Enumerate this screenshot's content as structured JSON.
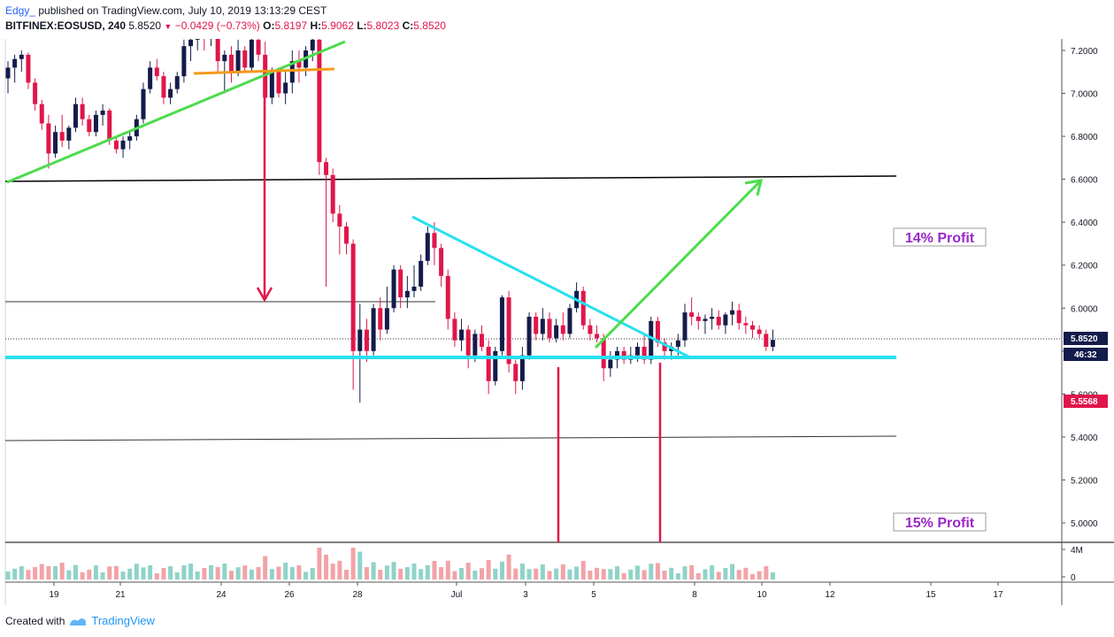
{
  "header": {
    "author": "Edgy_",
    "published": "published on TradingView.com, July 10, 2019 13:13:29 CEST",
    "symbol": "BITFINEX:EOSUSD, 240",
    "last": "5.8520",
    "change": "−0.0429 (−0.73%)",
    "o_label": "O:",
    "o": "5.8197",
    "h_label": "H:",
    "h": "5.9062",
    "l_label": "L:",
    "l": "5.8023",
    "c_label": "C:",
    "c": "5.8520"
  },
  "footer": {
    "created_with": "Created with",
    "brand": "TradingView"
  },
  "colors": {
    "up": "#131c4a",
    "down": "#e0164a",
    "trend_green": "#4cdc4c",
    "cyan": "#28e0f0",
    "orange": "#f59a1a",
    "profit_purple": "#9b27c8",
    "volume_up": "#8fd3c9",
    "volume_down": "#f2a3a7"
  },
  "chart_data": {
    "type": "candlestick",
    "symbol": "BITFINEX:EOSUSD",
    "timeframe": "240",
    "y_ticks": [
      "7.2000",
      "7.0000",
      "6.8000",
      "6.6000",
      "6.4000",
      "6.2000",
      "6.0000",
      "5.8000",
      "5.6000",
      "5.4000",
      "5.2000",
      "5.0000"
    ],
    "x_ticks": [
      "19",
      "21",
      "24",
      "26",
      "28",
      "Jul",
      "3",
      "5",
      "8",
      "10",
      "12",
      "15",
      "17"
    ],
    "ylim": [
      4.9,
      7.25
    ],
    "price_label": "5.8520",
    "countdown_label": "46:32",
    "low_label": "5.5568",
    "volume_axis": [
      "4M",
      "0"
    ],
    "annotations": {
      "profit_top": "14% Profit",
      "profit_bottom": "15% Profit"
    },
    "levels": [
      {
        "name": "resistance",
        "price": 6.6
      },
      {
        "name": "mid",
        "price": 6.02
      },
      {
        "name": "support",
        "price": 5.76
      },
      {
        "name": "lower",
        "price": 5.4
      }
    ],
    "candles": [
      {
        "o": 7.07,
        "h": 7.15,
        "l": 7.0,
        "c": 7.12
      },
      {
        "o": 7.12,
        "h": 7.18,
        "l": 7.05,
        "c": 7.16
      },
      {
        "o": 7.16,
        "h": 7.2,
        "l": 7.1,
        "c": 7.18
      },
      {
        "o": 7.18,
        "h": 7.19,
        "l": 7.02,
        "c": 7.05
      },
      {
        "o": 7.05,
        "h": 7.07,
        "l": 6.92,
        "c": 6.95
      },
      {
        "o": 6.95,
        "h": 6.97,
        "l": 6.83,
        "c": 6.86
      },
      {
        "o": 6.86,
        "h": 6.9,
        "l": 6.65,
        "c": 6.72
      },
      {
        "o": 6.72,
        "h": 6.85,
        "l": 6.7,
        "c": 6.82
      },
      {
        "o": 6.82,
        "h": 6.9,
        "l": 6.75,
        "c": 6.78
      },
      {
        "o": 6.78,
        "h": 6.85,
        "l": 6.74,
        "c": 6.84
      },
      {
        "o": 6.84,
        "h": 6.98,
        "l": 6.82,
        "c": 6.95
      },
      {
        "o": 6.95,
        "h": 6.98,
        "l": 6.85,
        "c": 6.88
      },
      {
        "o": 6.88,
        "h": 6.9,
        "l": 6.8,
        "c": 6.82
      },
      {
        "o": 6.82,
        "h": 6.92,
        "l": 6.8,
        "c": 6.9
      },
      {
        "o": 6.9,
        "h": 6.95,
        "l": 6.85,
        "c": 6.92
      },
      {
        "o": 6.92,
        "h": 6.93,
        "l": 6.76,
        "c": 6.78
      },
      {
        "o": 6.78,
        "h": 6.8,
        "l": 6.72,
        "c": 6.74
      },
      {
        "o": 6.74,
        "h": 6.8,
        "l": 6.7,
        "c": 6.78
      },
      {
        "o": 6.78,
        "h": 6.82,
        "l": 6.74,
        "c": 6.8
      },
      {
        "o": 6.8,
        "h": 6.9,
        "l": 6.78,
        "c": 6.88
      },
      {
        "o": 6.88,
        "h": 7.05,
        "l": 6.86,
        "c": 7.02
      },
      {
        "o": 7.02,
        "h": 7.15,
        "l": 7.0,
        "c": 7.12
      },
      {
        "o": 7.12,
        "h": 7.16,
        "l": 7.06,
        "c": 7.08
      },
      {
        "o": 7.08,
        "h": 7.1,
        "l": 6.95,
        "c": 6.98
      },
      {
        "o": 6.98,
        "h": 7.05,
        "l": 6.95,
        "c": 7.02
      },
      {
        "o": 7.02,
        "h": 7.1,
        "l": 7.0,
        "c": 7.08
      },
      {
        "o": 7.08,
        "h": 7.25,
        "l": 7.05,
        "c": 7.22
      },
      {
        "o": 7.22,
        "h": 7.3,
        "l": 7.15,
        "c": 7.25
      },
      {
        "o": 7.25,
        "h": 7.3,
        "l": 7.2,
        "c": 7.28
      },
      {
        "o": 7.28,
        "h": 7.3,
        "l": 7.2,
        "c": 7.26
      },
      {
        "o": 7.26,
        "h": 7.3,
        "l": 7.22,
        "c": 7.29
      },
      {
        "o": 7.29,
        "h": 7.3,
        "l": 7.1,
        "c": 7.15
      },
      {
        "o": 7.15,
        "h": 7.2,
        "l": 7.0,
        "c": 7.18
      },
      {
        "o": 7.18,
        "h": 7.22,
        "l": 7.05,
        "c": 7.1
      },
      {
        "o": 7.1,
        "h": 7.25,
        "l": 7.08,
        "c": 7.2
      },
      {
        "o": 7.2,
        "h": 7.22,
        "l": 7.1,
        "c": 7.12
      },
      {
        "o": 7.12,
        "h": 7.28,
        "l": 7.1,
        "c": 7.25
      },
      {
        "o": 7.25,
        "h": 7.3,
        "l": 7.15,
        "c": 7.18
      },
      {
        "o": 7.18,
        "h": 7.24,
        "l": 6.88,
        "c": 6.98
      },
      {
        "o": 6.98,
        "h": 7.12,
        "l": 6.95,
        "c": 7.1
      },
      {
        "o": 7.1,
        "h": 7.12,
        "l": 6.98,
        "c": 7.0
      },
      {
        "o": 7.0,
        "h": 7.1,
        "l": 6.95,
        "c": 7.05
      },
      {
        "o": 7.05,
        "h": 7.2,
        "l": 7.0,
        "c": 7.15
      },
      {
        "o": 7.15,
        "h": 7.2,
        "l": 7.05,
        "c": 7.12
      },
      {
        "o": 7.12,
        "h": 7.22,
        "l": 7.08,
        "c": 7.2
      },
      {
        "o": 7.2,
        "h": 7.3,
        "l": 7.15,
        "c": 7.25
      },
      {
        "o": 7.25,
        "h": 7.3,
        "l": 6.62,
        "c": 6.68
      },
      {
        "o": 6.68,
        "h": 6.7,
        "l": 6.1,
        "c": 6.62
      },
      {
        "o": 6.62,
        "h": 6.65,
        "l": 6.4,
        "c": 6.44
      },
      {
        "o": 6.44,
        "h": 6.48,
        "l": 6.25,
        "c": 6.38
      },
      {
        "o": 6.38,
        "h": 6.4,
        "l": 6.25,
        "c": 6.3
      },
      {
        "o": 6.3,
        "h": 6.32,
        "l": 5.62,
        "c": 5.8
      },
      {
        "o": 5.8,
        "h": 6.02,
        "l": 5.56,
        "c": 5.9
      },
      {
        "o": 5.9,
        "h": 5.95,
        "l": 5.75,
        "c": 5.8
      },
      {
        "o": 5.8,
        "h": 6.02,
        "l": 5.78,
        "c": 6.0
      },
      {
        "o": 6.0,
        "h": 6.05,
        "l": 5.85,
        "c": 5.9
      },
      {
        "o": 5.9,
        "h": 6.1,
        "l": 5.88,
        "c": 6.0
      },
      {
        "o": 6.0,
        "h": 6.2,
        "l": 5.98,
        "c": 6.18
      },
      {
        "o": 6.18,
        "h": 6.2,
        "l": 6.0,
        "c": 6.05
      },
      {
        "o": 6.05,
        "h": 6.15,
        "l": 6.0,
        "c": 6.08
      },
      {
        "o": 6.08,
        "h": 6.2,
        "l": 6.05,
        "c": 6.1
      },
      {
        "o": 6.1,
        "h": 6.25,
        "l": 6.08,
        "c": 6.22
      },
      {
        "o": 6.22,
        "h": 6.38,
        "l": 6.2,
        "c": 6.35
      },
      {
        "o": 6.35,
        "h": 6.4,
        "l": 6.2,
        "c": 6.28
      },
      {
        "o": 6.28,
        "h": 6.3,
        "l": 6.1,
        "c": 6.15
      },
      {
        "o": 6.15,
        "h": 6.18,
        "l": 5.9,
        "c": 5.95
      },
      {
        "o": 5.95,
        "h": 5.98,
        "l": 5.82,
        "c": 5.85
      },
      {
        "o": 5.85,
        "h": 5.95,
        "l": 5.8,
        "c": 5.9
      },
      {
        "o": 5.9,
        "h": 5.92,
        "l": 5.72,
        "c": 5.78
      },
      {
        "o": 5.78,
        "h": 5.9,
        "l": 5.75,
        "c": 5.88
      },
      {
        "o": 5.88,
        "h": 5.92,
        "l": 5.8,
        "c": 5.82
      },
      {
        "o": 5.82,
        "h": 5.85,
        "l": 5.6,
        "c": 5.66
      },
      {
        "o": 5.66,
        "h": 5.82,
        "l": 5.64,
        "c": 5.8
      },
      {
        "o": 5.8,
        "h": 6.06,
        "l": 5.78,
        "c": 6.05
      },
      {
        "o": 6.05,
        "h": 6.08,
        "l": 5.7,
        "c": 5.74
      },
      {
        "o": 5.74,
        "h": 5.76,
        "l": 5.6,
        "c": 5.66
      },
      {
        "o": 5.66,
        "h": 5.82,
        "l": 5.62,
        "c": 5.78
      },
      {
        "o": 5.78,
        "h": 5.98,
        "l": 5.76,
        "c": 5.96
      },
      {
        "o": 5.96,
        "h": 5.98,
        "l": 5.85,
        "c": 5.88
      },
      {
        "o": 5.88,
        "h": 6.0,
        "l": 5.85,
        "c": 5.95
      },
      {
        "o": 5.95,
        "h": 5.98,
        "l": 5.84,
        "c": 5.86
      },
      {
        "o": 5.86,
        "h": 5.95,
        "l": 5.84,
        "c": 5.92
      },
      {
        "o": 5.92,
        "h": 5.98,
        "l": 5.85,
        "c": 5.88
      },
      {
        "o": 5.88,
        "h": 6.02,
        "l": 5.86,
        "c": 6.0
      },
      {
        "o": 6.0,
        "h": 6.12,
        "l": 5.98,
        "c": 6.08
      },
      {
        "o": 6.08,
        "h": 6.1,
        "l": 5.9,
        "c": 5.92
      },
      {
        "o": 5.92,
        "h": 5.95,
        "l": 5.85,
        "c": 5.88
      },
      {
        "o": 5.88,
        "h": 5.92,
        "l": 5.84,
        "c": 5.86
      },
      {
        "o": 5.86,
        "h": 5.88,
        "l": 5.66,
        "c": 5.72
      },
      {
        "o": 5.72,
        "h": 5.8,
        "l": 5.68,
        "c": 5.76
      },
      {
        "o": 5.76,
        "h": 5.82,
        "l": 5.72,
        "c": 5.8
      },
      {
        "o": 5.8,
        "h": 5.82,
        "l": 5.74,
        "c": 5.76
      },
      {
        "o": 5.76,
        "h": 5.82,
        "l": 5.74,
        "c": 5.78
      },
      {
        "o": 5.78,
        "h": 5.84,
        "l": 5.75,
        "c": 5.82
      },
      {
        "o": 5.82,
        "h": 5.88,
        "l": 5.74,
        "c": 5.76
      },
      {
        "o": 5.76,
        "h": 5.96,
        "l": 5.74,
        "c": 5.94
      },
      {
        "o": 5.94,
        "h": 5.96,
        "l": 5.82,
        "c": 5.84
      },
      {
        "o": 5.84,
        "h": 5.86,
        "l": 5.76,
        "c": 5.8
      },
      {
        "o": 5.8,
        "h": 5.84,
        "l": 5.76,
        "c": 5.82
      },
      {
        "o": 5.82,
        "h": 5.88,
        "l": 5.78,
        "c": 5.85
      },
      {
        "o": 5.85,
        "h": 6.02,
        "l": 5.82,
        "c": 5.98
      },
      {
        "o": 5.98,
        "h": 6.05,
        "l": 5.92,
        "c": 5.96
      },
      {
        "o": 5.96,
        "h": 5.98,
        "l": 5.9,
        "c": 5.94
      },
      {
        "o": 5.94,
        "h": 5.97,
        "l": 5.88,
        "c": 5.95
      },
      {
        "o": 5.95,
        "h": 6.0,
        "l": 5.9,
        "c": 5.96
      },
      {
        "o": 5.96,
        "h": 5.99,
        "l": 5.9,
        "c": 5.92
      },
      {
        "o": 5.92,
        "h": 5.98,
        "l": 5.88,
        "c": 5.97
      },
      {
        "o": 5.97,
        "h": 6.03,
        "l": 5.92,
        "c": 5.99
      },
      {
        "o": 5.99,
        "h": 6.02,
        "l": 5.9,
        "c": 5.93
      },
      {
        "o": 5.93,
        "h": 5.96,
        "l": 5.88,
        "c": 5.92
      },
      {
        "o": 5.92,
        "h": 5.94,
        "l": 5.86,
        "c": 5.9
      },
      {
        "o": 5.9,
        "h": 5.92,
        "l": 5.86,
        "c": 5.88
      },
      {
        "o": 5.88,
        "h": 5.9,
        "l": 5.8,
        "c": 5.82
      },
      {
        "o": 5.82,
        "h": 5.9,
        "l": 5.8,
        "c": 5.852
      }
    ]
  }
}
